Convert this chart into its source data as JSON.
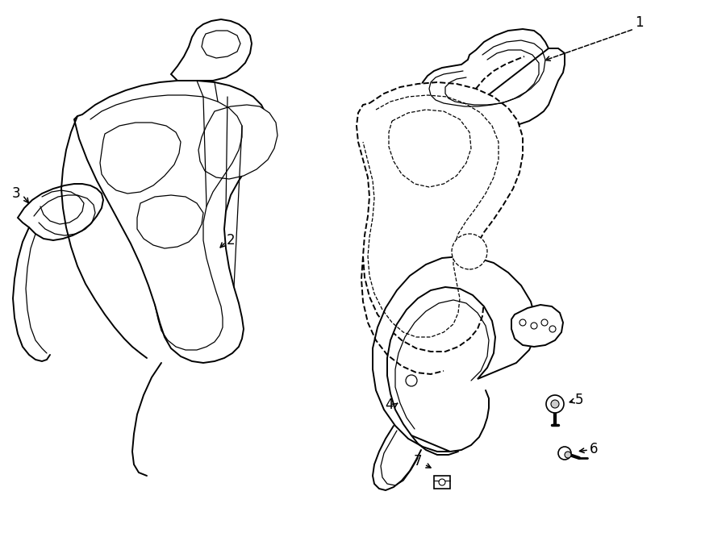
{
  "background_color": "#ffffff",
  "line_color": "#000000",
  "lw_main": 1.4,
  "lw_inner": 0.9,
  "label_fontsize": 12
}
